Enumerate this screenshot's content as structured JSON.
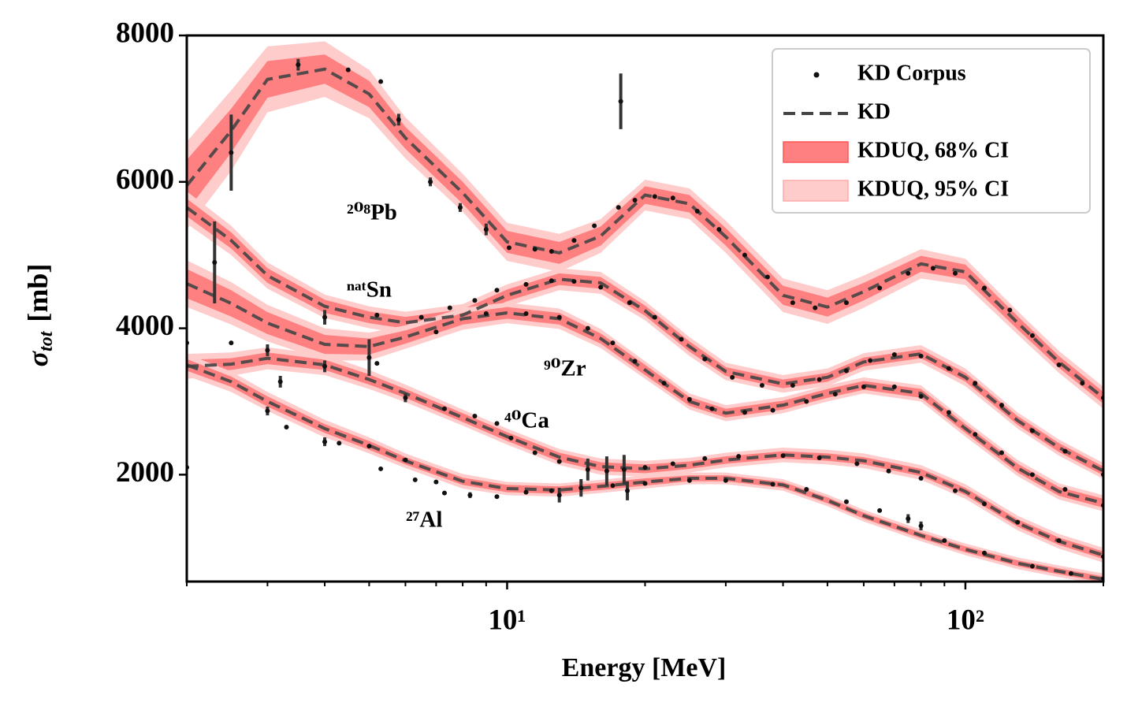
{
  "chart_data": {
    "type": "line",
    "xlabel": "Energy [MeV]",
    "ylabel": {
      "symbol": "σ",
      "subscript": "tot",
      "unit": "[mb]"
    },
    "xscale": "log",
    "xlim": [
      2,
      200
    ],
    "ylim": [
      540,
      8000
    ],
    "xticks": [
      {
        "value": 10,
        "label": "10¹"
      },
      {
        "value": 100,
        "label": "10²"
      }
    ],
    "xminorticks": [
      2,
      3,
      4,
      5,
      6,
      7,
      8,
      9,
      20,
      30,
      40,
      50,
      60,
      70,
      80,
      90,
      200
    ],
    "yticks": [
      2000,
      4000,
      6000,
      8000
    ],
    "legend": {
      "corner": "upper right",
      "corpus": "KD Corpus",
      "kd": "KD",
      "ci68": "KDUQ, 68% CI",
      "ci95": "KDUQ, 95% CI"
    },
    "colors": {
      "corpus": "#111111",
      "kd": "#444444",
      "ci68": "#ff8080",
      "ci95": "#ffcccc"
    },
    "grid_x": [
      2,
      2.5,
      3,
      4,
      5,
      6,
      8,
      10,
      13,
      16,
      20,
      25,
      30,
      40,
      50,
      60,
      80,
      100,
      130,
      160,
      200
    ],
    "nuclei": [
      {
        "name": "²⁰⁸Pb",
        "kd": [
          5950,
          6700,
          7400,
          7540,
          7200,
          6600,
          5850,
          5180,
          5030,
          5260,
          5820,
          5700,
          5250,
          4450,
          4290,
          4500,
          4880,
          4770,
          4075,
          3540,
          3050
        ],
        "ci68": [
          350,
          300,
          250,
          200,
          180,
          150,
          150,
          150,
          150,
          130,
          120,
          120,
          120,
          130,
          130,
          120,
          110,
          100,
          90,
          80,
          80
        ],
        "ci95": [
          600,
          550,
          450,
          380,
          330,
          280,
          260,
          260,
          260,
          230,
          210,
          210,
          220,
          230,
          230,
          220,
          200,
          180,
          160,
          150,
          150
        ],
        "corpus": {
          "x": [
            2.5,
            3.5,
            4.5,
            5.3,
            5.8,
            6.8,
            7.9,
            9,
            10.1,
            11.5,
            12.5,
            14,
            15.5,
            17.5,
            17.7,
            19,
            21,
            23,
            26,
            29,
            33,
            37,
            42,
            47,
            55,
            65,
            75,
            85,
            95,
            110,
            125,
            140,
            160,
            180,
            200
          ],
          "values": [
            6400,
            7600,
            7530,
            7370,
            6850,
            6000,
            5650,
            5350,
            5100,
            5080,
            5050,
            5200,
            5400,
            5650,
            7100,
            5750,
            5800,
            5780,
            5600,
            5350,
            5000,
            4700,
            4350,
            4280,
            4350,
            4550,
            4750,
            4820,
            4750,
            4550,
            4250,
            3900,
            3500,
            3250,
            3050
          ],
          "errors": [
            520,
            80,
            null,
            null,
            80,
            60,
            60,
            80,
            null,
            null,
            null,
            null,
            null,
            null,
            380,
            null,
            null,
            null,
            null,
            null,
            null,
            null,
            null,
            null,
            null,
            null,
            null,
            null,
            null,
            null,
            null,
            null,
            null,
            null,
            null
          ]
        }
      },
      {
        "name": "ⁿᵃᵗSn",
        "kd": [
          5650,
          5200,
          4720,
          4300,
          4150,
          4075,
          4180,
          4450,
          4670,
          4620,
          4240,
          3750,
          3410,
          3240,
          3330,
          3540,
          3650,
          3330,
          2740,
          2370,
          2050
        ],
        "ci68": [
          120,
          110,
          100,
          90,
          80,
          80,
          80,
          80,
          80,
          80,
          70,
          70,
          60,
          60,
          60,
          60,
          60,
          60,
          60,
          60,
          60
        ],
        "ci95": [
          220,
          200,
          180,
          160,
          150,
          150,
          150,
          150,
          150,
          150,
          130,
          130,
          120,
          120,
          120,
          120,
          120,
          120,
          110,
          110,
          110
        ],
        "corpus": {
          "x": [
            2.3,
            4,
            5.2,
            6.5,
            7.5,
            8.5,
            9.5,
            11,
            12.5,
            14,
            16,
            18.5,
            21,
            24,
            27,
            31,
            36,
            42,
            48,
            55,
            62,
            70,
            80,
            92,
            105,
            120,
            140,
            165,
            200
          ],
          "values": [
            4900,
            4150,
            4180,
            4150,
            4280,
            4380,
            4520,
            4600,
            4650,
            4640,
            4560,
            4350,
            4150,
            3850,
            3580,
            3330,
            3220,
            3220,
            3300,
            3420,
            3560,
            3640,
            3620,
            3450,
            3250,
            2950,
            2600,
            2320,
            2000
          ],
          "errors": [
            560,
            100,
            null,
            null,
            null,
            null,
            null,
            null,
            null,
            null,
            null,
            null,
            null,
            null,
            null,
            null,
            null,
            null,
            null,
            null,
            null,
            null,
            null,
            null,
            null,
            null,
            null,
            null,
            null
          ]
        }
      },
      {
        "name": "⁹⁰Zr",
        "kd": [
          4610,
          4340,
          4070,
          3780,
          3750,
          3880,
          4130,
          4210,
          4130,
          3860,
          3430,
          3000,
          2840,
          2950,
          3110,
          3220,
          3110,
          2630,
          2090,
          1770,
          1610
        ],
        "ci68": [
          200,
          180,
          150,
          130,
          110,
          90,
          80,
          80,
          80,
          70,
          70,
          60,
          60,
          60,
          60,
          60,
          60,
          60,
          60,
          60,
          60
        ],
        "ci95": [
          320,
          290,
          250,
          220,
          190,
          160,
          150,
          140,
          140,
          130,
          120,
          110,
          110,
          110,
          110,
          110,
          110,
          110,
          110,
          110,
          110
        ],
        "corpus": {
          "x": [
            2,
            5,
            5.2,
            7,
            9,
            11,
            13,
            15,
            17,
            19,
            22,
            25,
            28,
            33,
            38,
            45,
            52,
            60,
            70,
            80,
            92,
            105,
            120,
            140,
            165,
            200
          ],
          "values": [
            3800,
            3600,
            3520,
            3950,
            4200,
            4200,
            4150,
            4000,
            3800,
            3550,
            3250,
            3030,
            2900,
            2850,
            2880,
            3000,
            3100,
            3200,
            3200,
            3070,
            2850,
            2550,
            2300,
            2000,
            1800,
            1580
          ],
          "errors": [
            null,
            250,
            null,
            null,
            null,
            null,
            null,
            null,
            null,
            null,
            null,
            null,
            null,
            null,
            null,
            null,
            null,
            null,
            null,
            null,
            null,
            null,
            null,
            null,
            null,
            null
          ]
        }
      },
      {
        "name": "⁴⁰Ca",
        "kd": [
          3480,
          3510,
          3590,
          3500,
          3300,
          3110,
          2780,
          2520,
          2240,
          2110,
          2080,
          2130,
          2200,
          2270,
          2240,
          2190,
          2030,
          1770,
          1340,
          1090,
          900
        ],
        "ci68": [
          90,
          80,
          80,
          70,
          70,
          60,
          60,
          60,
          60,
          60,
          60,
          50,
          50,
          50,
          50,
          50,
          50,
          50,
          50,
          50,
          50
        ],
        "ci95": [
          170,
          160,
          150,
          140,
          130,
          120,
          110,
          110,
          110,
          110,
          110,
          100,
          100,
          100,
          100,
          100,
          100,
          100,
          100,
          100,
          100
        ],
        "corpus": {
          "x": [
            2,
            2.5,
            3,
            3.2,
            4,
            6,
            7.3,
            8.5,
            9.5,
            10.2,
            11.5,
            13,
            15,
            16.5,
            18,
            20,
            23,
            27,
            32,
            40,
            48,
            58,
            68,
            80,
            95,
            110,
            130,
            160,
            200
          ],
          "values": [
            2100,
            3800,
            3700,
            3270,
            3480,
            3050,
            2900,
            2800,
            2700,
            2500,
            2300,
            2180,
            2070,
            2050,
            2070,
            2100,
            2150,
            2220,
            2250,
            2260,
            2230,
            2150,
            2050,
            1950,
            1780,
            1600,
            1350,
            1100,
            880
          ],
          "errors": [
            null,
            null,
            80,
            80,
            80,
            60,
            null,
            null,
            null,
            null,
            null,
            null,
            150,
            200,
            200,
            null,
            null,
            null,
            null,
            null,
            null,
            null,
            null,
            null,
            null,
            null,
            null,
            null,
            null
          ]
        }
      },
      {
        "name": "²⁷Al",
        "kd": [
          3500,
          3270,
          3000,
          2630,
          2400,
          2190,
          1910,
          1810,
          1790,
          1840,
          1900,
          1950,
          1950,
          1860,
          1650,
          1440,
          1170,
          980,
          790,
          680,
          570
        ],
        "ci68": [
          80,
          70,
          70,
          60,
          60,
          50,
          50,
          50,
          50,
          50,
          50,
          40,
          40,
          40,
          40,
          40,
          40,
          40,
          40,
          40,
          40
        ],
        "ci95": [
          150,
          140,
          130,
          120,
          110,
          100,
          100,
          90,
          90,
          90,
          90,
          80,
          80,
          80,
          80,
          80,
          80,
          80,
          80,
          80,
          80
        ],
        "corpus": {
          "x": [
            3,
            3.3,
            4,
            4.3,
            5,
            5.3,
            6,
            6.3,
            7,
            7.3,
            8.3,
            9.5,
            11,
            12.5,
            13,
            14.5,
            17,
            18.3,
            20,
            25,
            30,
            38,
            45,
            55,
            65,
            75,
            80,
            90,
            110,
            140,
            170,
            200
          ],
          "values": [
            2870,
            2650,
            2450,
            2430,
            2390,
            2080,
            2200,
            1930,
            1900,
            1750,
            1720,
            1700,
            1760,
            1780,
            1720,
            1820,
            1850,
            1780,
            1880,
            1920,
            1920,
            1870,
            1800,
            1630,
            1510,
            1400,
            1300,
            1100,
            930,
            750,
            650,
            580
          ],
          "errors": [
            60,
            null,
            60,
            null,
            null,
            null,
            null,
            null,
            null,
            null,
            40,
            null,
            null,
            null,
            100,
            120,
            null,
            130,
            null,
            null,
            null,
            null,
            null,
            null,
            null,
            60,
            60,
            null,
            null,
            null,
            null,
            null
          ]
        }
      }
    ]
  }
}
